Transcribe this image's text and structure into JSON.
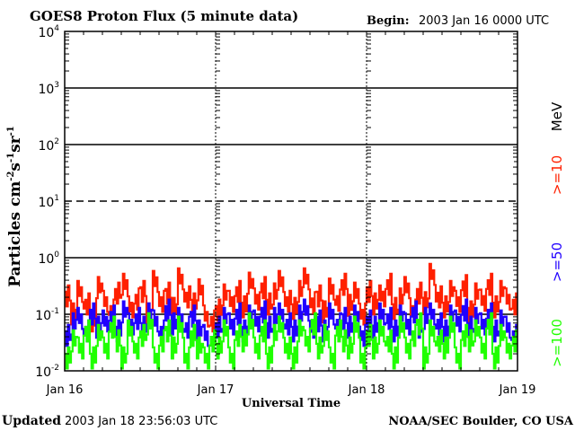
{
  "chart_data": {
    "type": "line",
    "title": "GOES8 Proton Flux (5 minute data)",
    "begin_label": "Begin:",
    "begin_value": "2003 Jan 16 0000 UTC",
    "xlabel": "Universal Time",
    "ylabel": "Particles cm",
    "ylabel_parts": [
      "Particles cm",
      "-2",
      "s",
      "-1",
      "sr",
      "-1"
    ],
    "x_ticks": [
      "Jan 16",
      "Jan 17",
      "Jan 18",
      "Jan 19"
    ],
    "x_range_hours": [
      0,
      72
    ],
    "y_scale": "log",
    "ylim": [
      0.01,
      10000
    ],
    "y_ticks": [
      {
        "base": "10",
        "exp": "4"
      },
      {
        "base": "10",
        "exp": "3"
      },
      {
        "base": "10",
        "exp": "2"
      },
      {
        "base": "10",
        "exp": "1"
      },
      {
        "base": "10",
        "exp": "0"
      },
      {
        "base": "10",
        "exp": "-1"
      },
      {
        "base": "10",
        "exp": "-2"
      }
    ],
    "legend_unit": "MeV",
    "series": [
      {
        "name": ">=10",
        "color": "#ff2000",
        "values": [
          0.25,
          0.12,
          0.3,
          0.18,
          0.09,
          0.35,
          0.2,
          0.14,
          0.28,
          0.4,
          0.16,
          0.22,
          0.3,
          0.12,
          0.45,
          0.2,
          0.28,
          0.15,
          0.5,
          0.24,
          0.18,
          0.32,
          0.11,
          0.09,
          0.14,
          0.26,
          0.2,
          0.3,
          0.16,
          0.42,
          0.22,
          0.35,
          0.18,
          0.27,
          0.45,
          0.2,
          0.15,
          0.3,
          0.5,
          0.19,
          0.25,
          0.13,
          0.33,
          0.21,
          0.4,
          0.17,
          0.28,
          0.12,
          0.3,
          0.18,
          0.25,
          0.4,
          0.15,
          0.22,
          0.35,
          0.14,
          0.28,
          0.19,
          0.6,
          0.24,
          0.16,
          0.3,
          0.2,
          0.38,
          0.13,
          0.27,
          0.21,
          0.4,
          0.16,
          0.3,
          0.22,
          0.18
        ]
      },
      {
        "name": ">=50",
        "color": "#2000ff",
        "values": [
          0.05,
          0.08,
          0.1,
          0.06,
          0.12,
          0.07,
          0.09,
          0.11,
          0.06,
          0.13,
          0.08,
          0.1,
          0.07,
          0.12,
          0.09,
          0.06,
          0.14,
          0.08,
          0.1,
          0.07,
          0.11,
          0.06,
          0.05,
          0.04,
          0.07,
          0.1,
          0.08,
          0.12,
          0.06,
          0.11,
          0.09,
          0.13,
          0.07,
          0.1,
          0.12,
          0.08,
          0.06,
          0.11,
          0.14,
          0.07,
          0.09,
          0.06,
          0.12,
          0.08,
          0.1,
          0.07,
          0.11,
          0.05,
          0.09,
          0.07,
          0.12,
          0.1,
          0.06,
          0.11,
          0.08,
          0.13,
          0.07,
          0.1,
          0.12,
          0.08,
          0.06,
          0.11,
          0.09,
          0.14,
          0.07,
          0.1,
          0.08,
          0.12,
          0.06,
          0.09,
          0.07,
          0.05
        ]
      },
      {
        "name": ">=100",
        "color": "#20ff00",
        "values": [
          0.02,
          0.04,
          0.03,
          0.06,
          0.02,
          0.05,
          0.03,
          0.07,
          0.04,
          0.02,
          0.06,
          0.03,
          0.05,
          0.08,
          0.02,
          0.04,
          0.06,
          0.03,
          0.07,
          0.02,
          0.05,
          0.03,
          0.02,
          0.04,
          0.03,
          0.06,
          0.02,
          0.05,
          0.04,
          0.08,
          0.03,
          0.06,
          0.02,
          0.05,
          0.07,
          0.03,
          0.02,
          0.06,
          0.04,
          0.08,
          0.03,
          0.05,
          0.02,
          0.06,
          0.04,
          0.03,
          0.07,
          0.02,
          0.05,
          0.03,
          0.06,
          0.04,
          0.02,
          0.07,
          0.03,
          0.05,
          0.08,
          0.02,
          0.06,
          0.04,
          0.03,
          0.07,
          0.02,
          0.05,
          0.04,
          0.06,
          0.03,
          0.08,
          0.02,
          0.05,
          0.03,
          0.04
        ]
      }
    ]
  },
  "footer": {
    "updated_label": "Updated",
    "updated_value": "2003 Jan 18 23:56:03 UTC",
    "credit": "NOAA/SEC Boulder, CO USA"
  }
}
